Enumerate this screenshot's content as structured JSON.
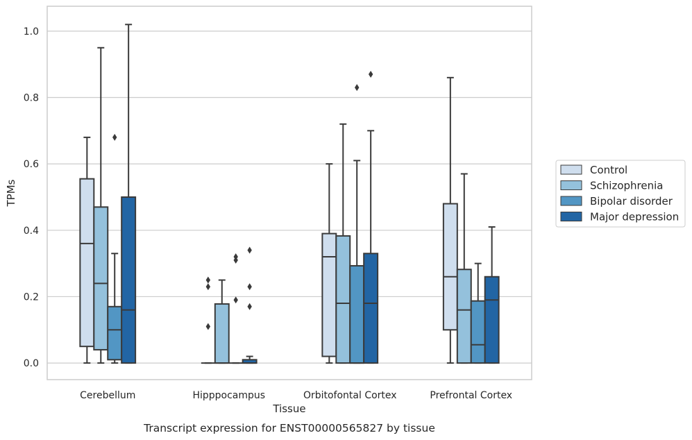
{
  "chart_data": {
    "type": "box",
    "title": "",
    "xlabel": "Tissue",
    "ylabel": "TPMs",
    "caption": "Transcript expression for ENST00000565827 by tissue",
    "ylim": [
      -0.05,
      1.075
    ],
    "yticks": [
      0.0,
      0.2,
      0.4,
      0.6,
      0.8,
      1.0
    ],
    "ytick_labels": [
      "0.0",
      "0.2",
      "0.4",
      "0.6",
      "0.8",
      "1.0"
    ],
    "grid": true,
    "legend_position": "right",
    "categories": [
      "Cerebellum",
      "Hipppocampus",
      "Orbitofontal Cortex",
      "Prefrontal Cortex"
    ],
    "series": [
      {
        "name": "Control",
        "color": "#cfdeee",
        "boxes": [
          {
            "whisker_low": 0.0,
            "q1": 0.05,
            "median": 0.36,
            "q3": 0.555,
            "whisker_high": 0.68,
            "outliers": []
          },
          {
            "whisker_low": 0.0,
            "q1": 0.0,
            "median": 0.0,
            "q3": 0.0,
            "whisker_high": 0.0,
            "outliers": [
              0.11,
              0.23,
              0.25
            ]
          },
          {
            "whisker_low": 0.0,
            "q1": 0.02,
            "median": 0.32,
            "q3": 0.39,
            "whisker_high": 0.6,
            "outliers": []
          },
          {
            "whisker_low": 0.0,
            "q1": 0.1,
            "median": 0.26,
            "q3": 0.48,
            "whisker_high": 0.86,
            "outliers": []
          }
        ]
      },
      {
        "name": "Schizophrenia",
        "color": "#94c1dc",
        "boxes": [
          {
            "whisker_low": 0.0,
            "q1": 0.04,
            "median": 0.24,
            "q3": 0.47,
            "whisker_high": 0.95,
            "outliers": []
          },
          {
            "whisker_low": 0.0,
            "q1": 0.0,
            "median": 0.0,
            "q3": 0.178,
            "whisker_high": 0.25,
            "outliers": []
          },
          {
            "whisker_low": 0.0,
            "q1": 0.0,
            "median": 0.18,
            "q3": 0.383,
            "whisker_high": 0.72,
            "outliers": []
          },
          {
            "whisker_low": 0.0,
            "q1": 0.0,
            "median": 0.16,
            "q3": 0.282,
            "whisker_high": 0.57,
            "outliers": []
          }
        ]
      },
      {
        "name": "Bipolar disorder",
        "color": "#5296c4",
        "boxes": [
          {
            "whisker_low": 0.0,
            "q1": 0.01,
            "median": 0.1,
            "q3": 0.17,
            "whisker_high": 0.33,
            "outliers": [
              0.68
            ]
          },
          {
            "whisker_low": 0.0,
            "q1": 0.0,
            "median": 0.0,
            "q3": 0.0,
            "whisker_high": 0.0,
            "outliers": [
              0.19,
              0.31,
              0.32
            ]
          },
          {
            "whisker_low": 0.0,
            "q1": 0.0,
            "median": 0.0,
            "q3": 0.293,
            "whisker_high": 0.61,
            "outliers": [
              0.83
            ]
          },
          {
            "whisker_low": 0.0,
            "q1": 0.0,
            "median": 0.055,
            "q3": 0.187,
            "whisker_high": 0.3,
            "outliers": []
          }
        ]
      },
      {
        "name": "Major depression",
        "color": "#2265a4",
        "boxes": [
          {
            "whisker_low": 0.0,
            "q1": 0.0,
            "median": 0.16,
            "q3": 0.5,
            "whisker_high": 1.02,
            "outliers": []
          },
          {
            "whisker_low": 0.0,
            "q1": 0.0,
            "median": 0.0,
            "q3": 0.01,
            "whisker_high": 0.02,
            "outliers": [
              0.17,
              0.23,
              0.34
            ]
          },
          {
            "whisker_low": 0.0,
            "q1": 0.0,
            "median": 0.18,
            "q3": 0.33,
            "whisker_high": 0.7,
            "outliers": [
              0.87
            ]
          },
          {
            "whisker_low": 0.0,
            "q1": 0.0,
            "median": 0.19,
            "q3": 0.26,
            "whisker_high": 0.41,
            "outliers": []
          }
        ]
      }
    ]
  }
}
